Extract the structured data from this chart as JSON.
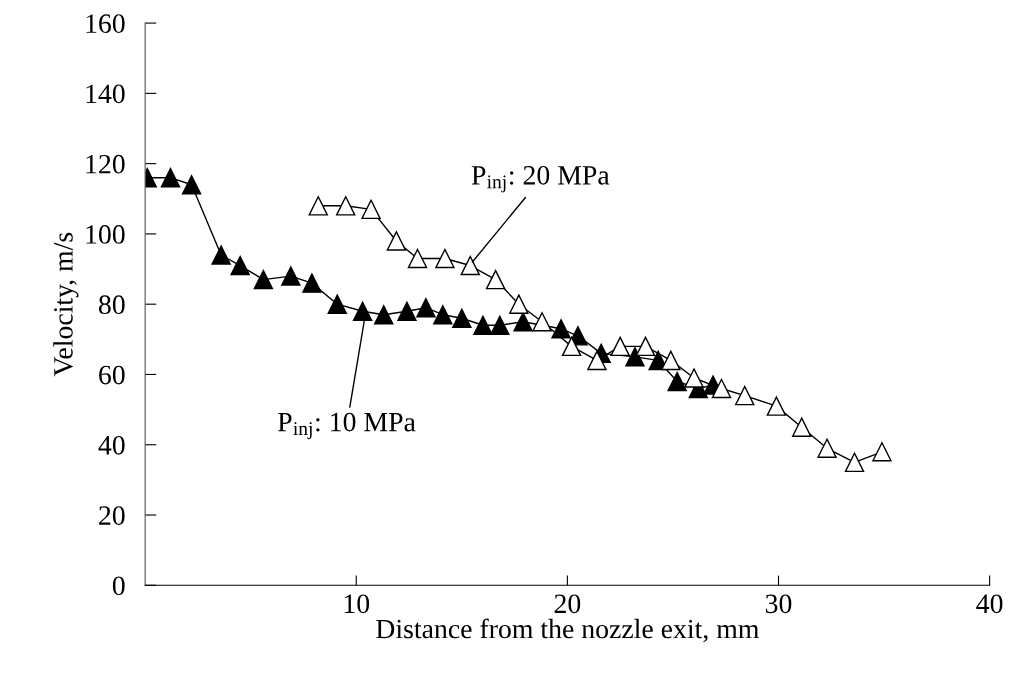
{
  "chart_data": {
    "type": "line",
    "xlabel": "Distance from the nozzle exit, mm",
    "ylabel": "Velocity, m/s",
    "xlim": [
      0,
      40
    ],
    "xticks": [
      10,
      20,
      30,
      40
    ],
    "ylim": [
      0,
      160
    ],
    "yticks": [
      0,
      20,
      40,
      60,
      80,
      100,
      120,
      140,
      160
    ],
    "marker": "triangle",
    "line_style": "solid",
    "grid": false,
    "legend": false,
    "series": [
      {
        "color": "#000000",
        "x": [
          0.1,
          1.2,
          2.2,
          3.6,
          4.5,
          5.6,
          6.9,
          7.9,
          9.1,
          10.3,
          11.3,
          12.4,
          13.3,
          14.1,
          15.0,
          16.0,
          16.8,
          17.9,
          19.7,
          20.5,
          21.6,
          23.2,
          24.3,
          25.2,
          26.2,
          26.9
        ],
        "values": [
          116,
          116,
          114,
          94,
          91,
          87,
          88,
          86,
          80,
          78,
          77,
          78,
          79,
          77,
          76,
          74,
          74,
          75,
          73,
          71,
          66,
          65,
          64,
          58,
          56,
          57
        ]
      },
      {
        "color": "#000000",
        "x": [
          8.2,
          9.5,
          10.7,
          11.9,
          12.9,
          14.2,
          15.4,
          16.6,
          17.7,
          18.8,
          20.2,
          21.4,
          22.5,
          23.7,
          24.9,
          26.0,
          27.3,
          28.4,
          29.9,
          31.1,
          32.3,
          33.6,
          34.9
        ],
        "values": [
          108,
          108,
          107,
          98,
          93,
          93,
          91,
          87,
          80,
          75,
          68,
          64,
          68,
          68,
          64,
          59,
          56,
          54,
          51,
          45,
          39,
          35,
          38
        ]
      }
    ],
    "annotations": [
      {
        "text": "P$_{inj}$: 20 MPa",
        "x": 15.5,
        "y": 92
      },
      {
        "text": "P$_{inj}$: 10 MPa",
        "x": 10.4,
        "y": 76
      }
    ]
  }
}
